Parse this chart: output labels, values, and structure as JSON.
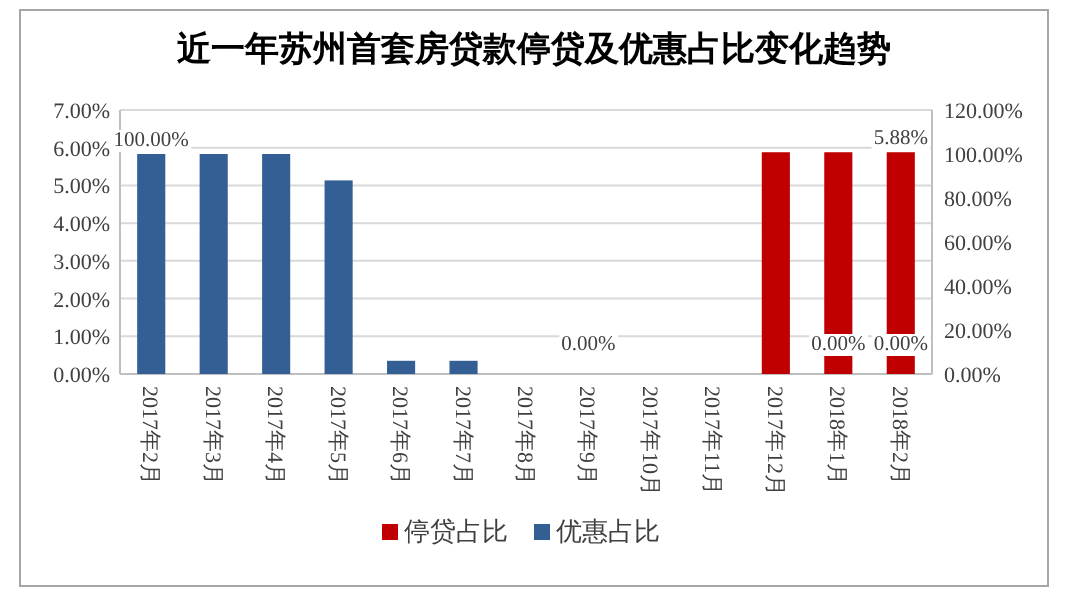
{
  "chart_data": {
    "type": "bar",
    "title": "近一年苏州首套房贷款停贷及优惠占比变化趋势",
    "categories": [
      "2017年2月",
      "2017年3月",
      "2017年4月",
      "2017年5月",
      "2017年6月",
      "2017年7月",
      "2017年8月",
      "2017年9月",
      "2017年10月",
      "2017年11月",
      "2017年12月",
      "2018年1月",
      "2018年2月"
    ],
    "series": [
      {
        "name": "停贷占比",
        "color": "#c00000",
        "values": [
          0,
          0,
          0,
          0,
          0,
          0,
          0,
          0,
          0,
          0,
          5.88,
          5.88,
          5.88
        ],
        "value_labels": [
          null,
          null,
          null,
          null,
          null,
          null,
          null,
          null,
          null,
          null,
          null,
          null,
          "5.88%"
        ]
      },
      {
        "name": "优惠占比",
        "color": "#335f95",
        "axis": "y2",
        "values": [
          100,
          100,
          100,
          88,
          6,
          6,
          0,
          0,
          0,
          0,
          0,
          0,
          0
        ],
        "value_labels": [
          "100.00%",
          null,
          null,
          null,
          null,
          null,
          null,
          "0.00%",
          null,
          null,
          null,
          "0.00%",
          "0.00%"
        ]
      }
    ],
    "ylim": [
      0,
      7
    ],
    "yticks": [
      {
        "value": 0,
        "label": "0.00%"
      },
      {
        "value": 1,
        "label": "1.00%"
      },
      {
        "value": 2,
        "label": "2.00%"
      },
      {
        "value": 3,
        "label": "3.00%"
      },
      {
        "value": 4,
        "label": "4.00%"
      },
      {
        "value": 5,
        "label": "5.00%"
      },
      {
        "value": 6,
        "label": "6.00%"
      },
      {
        "value": 7,
        "label": "7.00%"
      }
    ],
    "y2lim": [
      0,
      120
    ],
    "y2ticks": [
      {
        "value": 0,
        "label": "0.00%"
      },
      {
        "value": 20,
        "label": "20.00%"
      },
      {
        "value": 40,
        "label": "40.00%"
      },
      {
        "value": 60,
        "label": "60.00%"
      },
      {
        "value": 80,
        "label": "80.00%"
      },
      {
        "value": 100,
        "label": "100.00%"
      },
      {
        "value": 120,
        "label": "120.00%"
      }
    ],
    "grid": "y",
    "legend": "bottom"
  }
}
